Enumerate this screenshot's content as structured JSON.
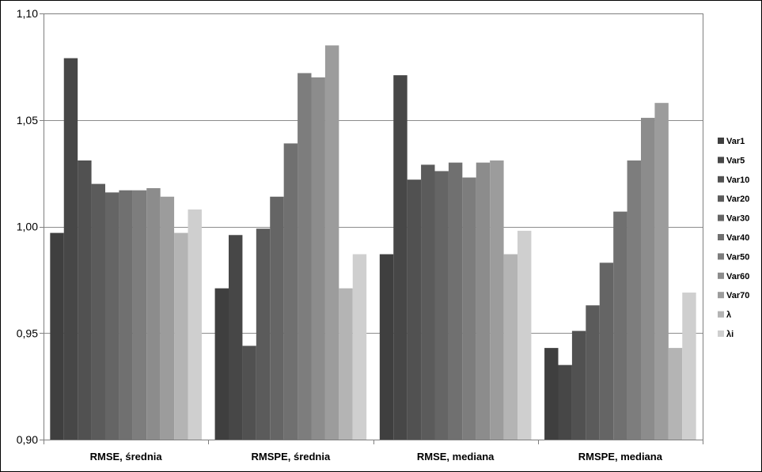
{
  "chart_data": {
    "type": "bar",
    "title": "",
    "xlabel": "",
    "ylabel": "",
    "ylim": [
      0.9,
      1.1
    ],
    "yticks": [
      0.9,
      0.95,
      1.0,
      1.05,
      1.1
    ],
    "ytick_labels": [
      "0,90",
      "0,95",
      "1,00",
      "1,05",
      "1,10"
    ],
    "grid": true,
    "legend_position": "right",
    "categories": [
      "RMSE, średnia",
      "RMSPE, średnia",
      "RMSE, mediana",
      "RMSPE, mediana"
    ],
    "series": [
      {
        "name": "Var1",
        "color": "#3f3f3f",
        "values": [
          0.997,
          0.971,
          0.987,
          0.943
        ]
      },
      {
        "name": "Var5",
        "color": "#474747",
        "values": [
          1.079,
          0.996,
          1.071,
          0.935
        ]
      },
      {
        "name": "Var10",
        "color": "#515151",
        "values": [
          1.031,
          0.944,
          1.022,
          0.951
        ]
      },
      {
        "name": "Var20",
        "color": "#5b5b5b",
        "values": [
          1.02,
          0.999,
          1.029,
          0.963
        ]
      },
      {
        "name": "Var30",
        "color": "#656565",
        "values": [
          1.016,
          1.014,
          1.026,
          0.983
        ]
      },
      {
        "name": "Var40",
        "color": "#707070",
        "values": [
          1.017,
          1.039,
          1.03,
          1.007
        ]
      },
      {
        "name": "Var50",
        "color": "#7d7d7d",
        "values": [
          1.017,
          1.072,
          1.023,
          1.031
        ]
      },
      {
        "name": "Var60",
        "color": "#8c8c8c",
        "values": [
          1.018,
          1.07,
          1.03,
          1.051
        ]
      },
      {
        "name": "Var70",
        "color": "#9c9c9c",
        "values": [
          1.014,
          1.085,
          1.031,
          1.058
        ]
      },
      {
        "name": "λ",
        "color": "#b4b4b4",
        "values": [
          0.997,
          0.971,
          0.987,
          0.943
        ]
      },
      {
        "name": "λi",
        "color": "#cfcfcf",
        "values": [
          1.008,
          0.987,
          0.998,
          0.969
        ]
      }
    ]
  }
}
